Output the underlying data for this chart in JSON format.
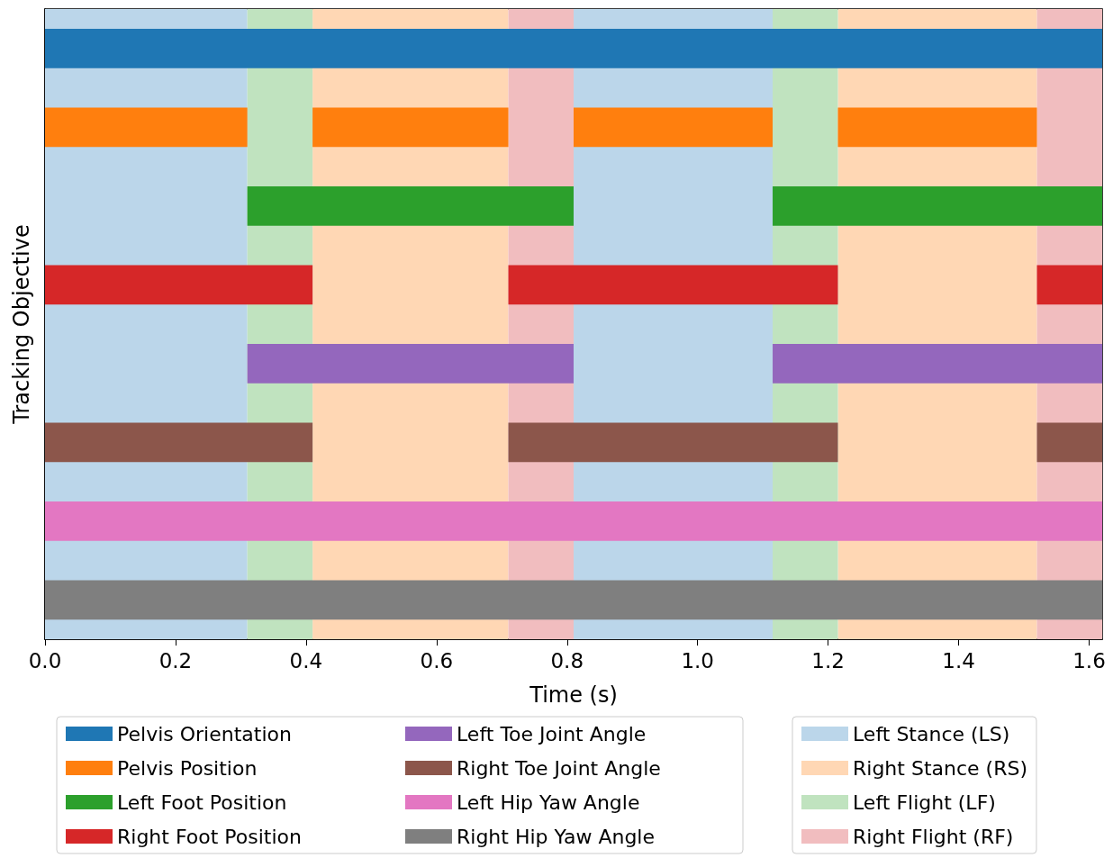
{
  "chart_data": {
    "type": "bar",
    "orientation": "horizontal",
    "xlabel": "Time (s)",
    "ylabel": "Tracking Objective",
    "categories": [
      null,
      null,
      null,
      null,
      null,
      null,
      null,
      null
    ],
    "xlim": [
      0,
      1.62
    ],
    "xticks": [
      {
        "value": 0,
        "label": "0.0"
      },
      {
        "value": 0.2,
        "label": "0.2"
      },
      {
        "value": 0.4,
        "label": "0.4"
      },
      {
        "value": 0.6,
        "label": "0.6"
      },
      {
        "value": 0.8,
        "label": "0.8"
      },
      {
        "value": 1.0,
        "label": "1.0"
      },
      {
        "value": 1.2,
        "label": "1.2"
      },
      {
        "value": 1.4,
        "label": "1.4"
      },
      {
        "value": 1.6,
        "label": "1.6"
      }
    ],
    "tick_labels": "x",
    "legend": "bottom",
    "series": [
      {
        "name": "Pelvis Orientation",
        "color": "#1f77b4",
        "values": [
          1.62,
          null,
          null,
          null,
          null,
          null,
          null,
          null
        ],
        "base": [
          0,
          null,
          null,
          null,
          null,
          null,
          null,
          null
        ]
      },
      {
        "name": "Pelvis Position",
        "color": "#ff7f0e",
        "values": [
          null,
          0.31,
          null,
          null,
          null,
          null,
          null,
          null
        ],
        "base": [
          null,
          0,
          null,
          null,
          null,
          null,
          null,
          null
        ]
      },
      {
        "color": "#ff7f0e",
        "values": [
          null,
          0.3,
          null,
          null,
          null,
          null,
          null,
          null
        ],
        "base": [
          null,
          0.41,
          null,
          null,
          null,
          null,
          null,
          null
        ]
      },
      {
        "color": "#ff7f0e",
        "values": [
          null,
          0.305,
          null,
          null,
          null,
          null,
          null,
          null
        ],
        "base": [
          null,
          0.81,
          null,
          null,
          null,
          null,
          null,
          null
        ]
      },
      {
        "color": "#ff7f0e",
        "values": [
          null,
          0.305,
          null,
          null,
          null,
          null,
          null,
          null
        ],
        "base": [
          null,
          1.215,
          null,
          null,
          null,
          null,
          null,
          null
        ]
      },
      {
        "name": "Left Foot Position",
        "color": "#2ca02c",
        "values": [
          null,
          null,
          0.5,
          null,
          null,
          null,
          null,
          null
        ],
        "base": [
          null,
          null,
          0.31,
          null,
          null,
          null,
          null,
          null
        ]
      },
      {
        "color": "#2ca02c",
        "values": [
          null,
          null,
          0.505,
          null,
          null,
          null,
          null,
          null
        ],
        "base": [
          null,
          null,
          1.115,
          null,
          null,
          null,
          null,
          null
        ]
      },
      {
        "name": "Right Foot Position",
        "color": "#d62728",
        "values": [
          null,
          null,
          null,
          0.41,
          null,
          null,
          null,
          null
        ],
        "base": [
          null,
          null,
          null,
          0,
          null,
          null,
          null,
          null
        ]
      },
      {
        "color": "#d62728",
        "values": [
          null,
          null,
          null,
          0.505,
          null,
          null,
          null,
          null
        ],
        "base": [
          null,
          null,
          null,
          0.71,
          null,
          null,
          null,
          null
        ]
      },
      {
        "color": "#d62728",
        "values": [
          null,
          null,
          null,
          0.1,
          null,
          null,
          null,
          null
        ],
        "base": [
          null,
          null,
          null,
          1.52,
          null,
          null,
          null,
          null
        ]
      },
      {
        "name": "Left Toe Joint Angle",
        "color": "#9467bd",
        "values": [
          null,
          null,
          null,
          null,
          0.5,
          null,
          null,
          null
        ],
        "base": [
          null,
          null,
          null,
          null,
          0.31,
          null,
          null,
          null
        ]
      },
      {
        "color": "#9467bd",
        "values": [
          null,
          null,
          null,
          null,
          0.505,
          null,
          null,
          null
        ],
        "base": [
          null,
          null,
          null,
          null,
          1.115,
          null,
          null,
          null
        ]
      },
      {
        "name": "Right Toe Joint Angle",
        "color": "#8c564b",
        "values": [
          null,
          null,
          null,
          null,
          null,
          0.41,
          null,
          null
        ],
        "base": [
          null,
          null,
          null,
          null,
          null,
          0,
          null,
          null
        ]
      },
      {
        "color": "#8c564b",
        "values": [
          null,
          null,
          null,
          null,
          null,
          0.505,
          null,
          null
        ],
        "base": [
          null,
          null,
          null,
          null,
          null,
          0.71,
          null,
          null
        ]
      },
      {
        "color": "#8c564b",
        "values": [
          null,
          null,
          null,
          null,
          null,
          0.1,
          null,
          null
        ],
        "base": [
          null,
          null,
          null,
          null,
          null,
          1.52,
          null,
          null
        ]
      },
      {
        "name": "Left Hip Yaw Angle",
        "color": "#e377c2",
        "values": [
          null,
          null,
          null,
          null,
          null,
          null,
          1.62,
          null
        ],
        "base": [
          null,
          null,
          null,
          null,
          null,
          null,
          0,
          null
        ]
      },
      {
        "name": "Right Hip Yaw Angle",
        "color": "#7f7f7f",
        "values": [
          null,
          null,
          null,
          null,
          null,
          null,
          null,
          1.62
        ],
        "base": [
          null,
          null,
          null,
          null,
          null,
          null,
          null,
          0
        ]
      }
    ],
    "bands": [
      {
        "axis": "x",
        "from": 0,
        "to": 0.31,
        "label": "Left Stance (LS)",
        "color": "#bbd6ea"
      },
      {
        "axis": "x",
        "from": 0.41,
        "to": 0.71,
        "label": "Right Stance (RS)",
        "color": "#ffd7b4"
      },
      {
        "axis": "x",
        "from": 0.31,
        "to": 0.41,
        "label": "Left Flight (LF)",
        "color": "#c0e3bf"
      },
      {
        "axis": "x",
        "from": 0.71,
        "to": 0.81,
        "label": "Right Flight (RF)",
        "color": "#f1bdbf"
      },
      {
        "axis": "x",
        "from": 0.81,
        "to": 1.115,
        "color": "#bbd6ea"
      },
      {
        "axis": "x",
        "from": 1.215,
        "to": 1.52,
        "color": "#ffd7b4"
      },
      {
        "axis": "x",
        "from": 1.115,
        "to": 1.215,
        "color": "#c0e3bf"
      },
      {
        "axis": "x",
        "from": 1.52,
        "to": 1.62,
        "color": "#f1bdbf"
      }
    ]
  }
}
